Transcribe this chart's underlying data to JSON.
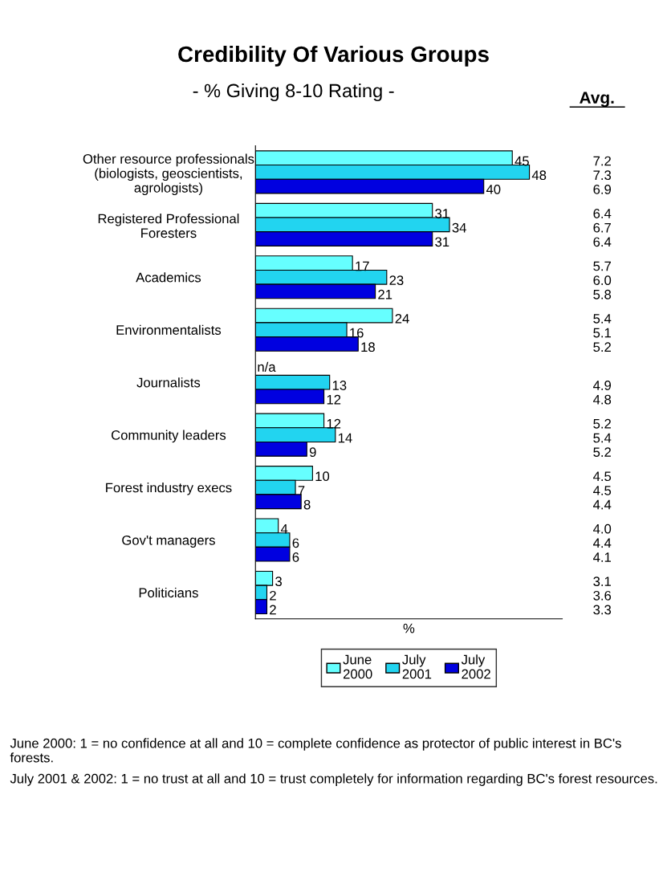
{
  "chart_data": {
    "type": "bar",
    "orientation": "horizontal",
    "title": "Credibility Of Various Groups",
    "subtitle": "- % Giving 8-10 Rating -",
    "xlabel": "%",
    "categories": [
      "Other resource professionals\n(biologists, geoscientists,\nagrologists)",
      "Registered Professional\nForesters",
      "Academics",
      "Environmentalists",
      "Journalists",
      "Community leaders",
      "Forest industry execs",
      "Gov't managers",
      "Politicians"
    ],
    "series": [
      {
        "name": "June\n2000",
        "color": "#66ffff",
        "values": [
          45,
          31,
          17,
          24,
          null,
          12,
          10,
          4,
          3
        ],
        "value_labels": [
          "45",
          "31",
          "17",
          "24",
          "n/a",
          "12",
          "10",
          "4",
          "3"
        ]
      },
      {
        "name": "July\n2001",
        "color": "#22d4f0",
        "values": [
          48,
          34,
          23,
          16,
          13,
          14,
          7,
          6,
          2
        ],
        "value_labels": [
          "48",
          "34",
          "23",
          "16",
          "13",
          "14",
          "7",
          "6",
          "2"
        ]
      },
      {
        "name": "July\n2002",
        "color": "#0000e0",
        "values": [
          40,
          31,
          21,
          18,
          12,
          9,
          8,
          6,
          2
        ],
        "value_labels": [
          "40",
          "31",
          "21",
          "18",
          "12",
          "9",
          "8",
          "6",
          "2"
        ]
      }
    ],
    "annotations": [
      "Avg.",
      "7.2",
      "7.3",
      "6.9",
      "6.4",
      "6.7",
      "6.4",
      "5.7",
      "6.0",
      "5.8",
      "5.4",
      "5.1",
      "5.2",
      "4.9",
      "4.8",
      "5.2",
      "5.4",
      "5.2",
      "4.5",
      "4.5",
      "4.4",
      "4.0",
      "4.4",
      "4.1",
      "3.1",
      "3.6",
      "3.3",
      "June 2000: 1 = no confidence at all and 10 = complete confidence as protector of public interest in BC's forests.",
      "July 2001 & 2002: 1 = no trust at all and 10 = trust completely for information regarding BC's forest resources."
    ],
    "legend": "bottom",
    "grid": false
  }
}
